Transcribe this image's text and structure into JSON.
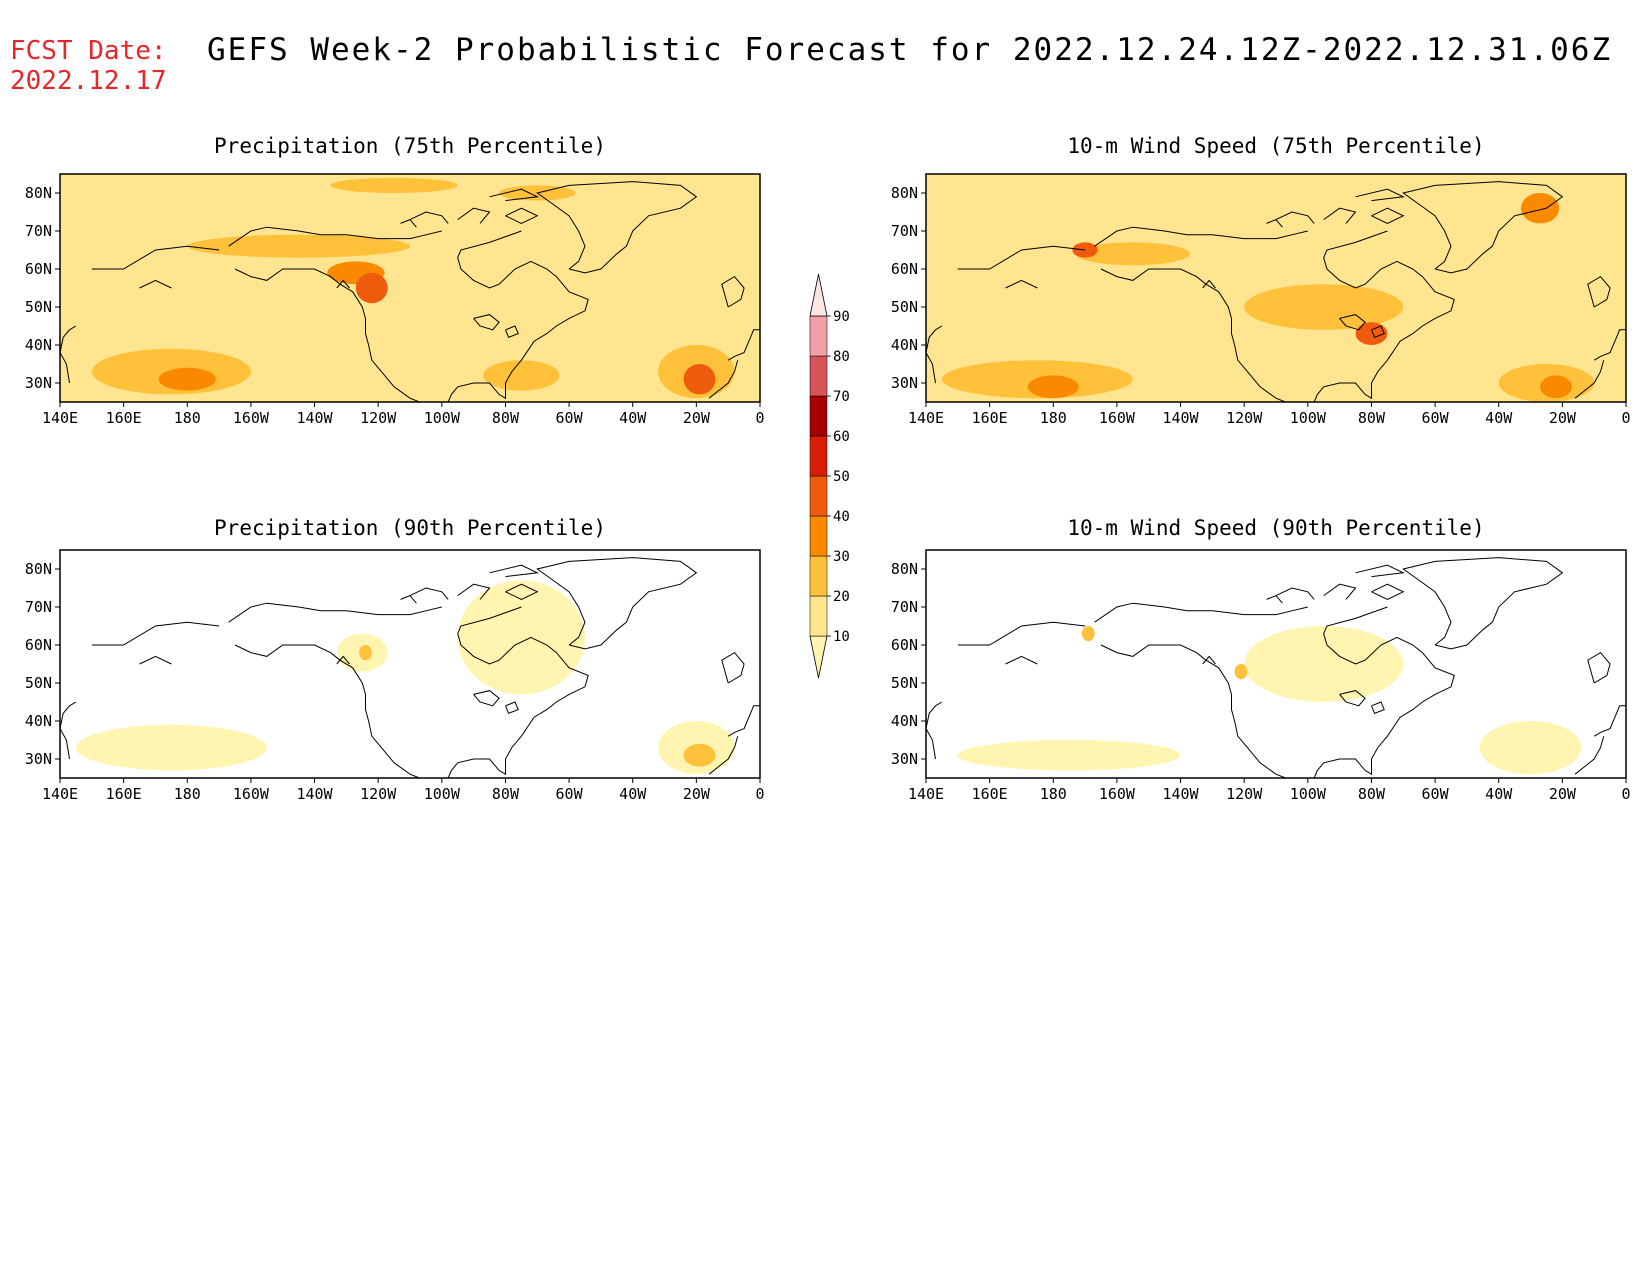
{
  "header": {
    "fcst_label": "FCST Date:",
    "fcst_date": "2022.12.17",
    "title": "GEFS Week-2 Probabilistic Forecast for 2022.12.24.12Z-2022.12.31.06Z"
  },
  "axes": {
    "lon_ticks": [
      "140E",
      "160E",
      "180",
      "160W",
      "140W",
      "120W",
      "100W",
      "80W",
      "60W",
      "40W",
      "20W",
      "0"
    ],
    "lat_ticks": [
      "80N",
      "70N",
      "60N",
      "50N",
      "40N",
      "30N"
    ],
    "lon_range_deg_east": [
      140,
      360
    ],
    "lat_range": [
      25,
      85
    ]
  },
  "colorbar": {
    "levels": [
      "10",
      "20",
      "30",
      "40",
      "50",
      "60",
      "70",
      "80",
      "90"
    ],
    "colors": [
      "#fff5b0",
      "#ffe58f",
      "#ffc03a",
      "#f98a00",
      "#ef5b0d",
      "#d81e05",
      "#a60000",
      "#d8545b",
      "#f2a0a6",
      "#fde4e5"
    ]
  },
  "panels": [
    {
      "id": "precip-75",
      "title": "Precipitation (75th Percentile)",
      "blobs": [
        {
          "lon": 175,
          "lat": 33,
          "rx": 25,
          "ry": 6,
          "level": 3
        },
        {
          "lon": 180,
          "lat": 31,
          "rx": 9,
          "ry": 3,
          "level": 4
        },
        {
          "lon": 215,
          "lat": 66,
          "rx": 35,
          "ry": 3,
          "level": 3
        },
        {
          "lon": 233,
          "lat": 59,
          "rx": 9,
          "ry": 3,
          "level": 4
        },
        {
          "lon": 238,
          "lat": 55,
          "rx": 5,
          "ry": 4,
          "level": 5
        },
        {
          "lon": 340,
          "lat": 33,
          "rx": 12,
          "ry": 7,
          "level": 3
        },
        {
          "lon": 341,
          "lat": 31,
          "rx": 5,
          "ry": 4,
          "level": 5
        },
        {
          "lon": 285,
          "lat": 32,
          "rx": 12,
          "ry": 4,
          "level": 3
        },
        {
          "lon": 245,
          "lat": 82,
          "rx": 20,
          "ry": 2,
          "level": 3
        },
        {
          "lon": 290,
          "lat": 80,
          "rx": 12,
          "ry": 2,
          "level": 3
        }
      ],
      "base_level": 2
    },
    {
      "id": "wind-75",
      "title": "10-m Wind Speed (75th Percentile)",
      "blobs": [
        {
          "lon": 175,
          "lat": 31,
          "rx": 30,
          "ry": 5,
          "level": 3
        },
        {
          "lon": 180,
          "lat": 29,
          "rx": 8,
          "ry": 3,
          "level": 4
        },
        {
          "lon": 205,
          "lat": 64,
          "rx": 18,
          "ry": 3,
          "level": 3
        },
        {
          "lon": 190,
          "lat": 65,
          "rx": 4,
          "ry": 2,
          "level": 5
        },
        {
          "lon": 265,
          "lat": 50,
          "rx": 25,
          "ry": 6,
          "level": 3
        },
        {
          "lon": 280,
          "lat": 43,
          "rx": 5,
          "ry": 3,
          "level": 5
        },
        {
          "lon": 335,
          "lat": 30,
          "rx": 15,
          "ry": 5,
          "level": 3
        },
        {
          "lon": 338,
          "lat": 29,
          "rx": 5,
          "ry": 3,
          "level": 4
        },
        {
          "lon": 333,
          "lat": 76,
          "rx": 6,
          "ry": 4,
          "level": 4
        }
      ],
      "base_level": 2
    },
    {
      "id": "precip-90",
      "title": "Precipitation (90th Percentile)",
      "blobs": [
        {
          "lon": 175,
          "lat": 33,
          "rx": 30,
          "ry": 6,
          "level": 1
        },
        {
          "lon": 235,
          "lat": 58,
          "rx": 8,
          "ry": 5,
          "level": 1
        },
        {
          "lon": 236,
          "lat": 58,
          "rx": 2,
          "ry": 2,
          "level": 3
        },
        {
          "lon": 340,
          "lat": 33,
          "rx": 12,
          "ry": 7,
          "level": 1
        },
        {
          "lon": 341,
          "lat": 31,
          "rx": 5,
          "ry": 3,
          "level": 3
        },
        {
          "lon": 285,
          "lat": 62,
          "rx": 20,
          "ry": 15,
          "level": 1
        }
      ],
      "base_level": 0
    },
    {
      "id": "wind-90",
      "title": "10-m Wind Speed (90th Percentile)",
      "blobs": [
        {
          "lon": 185,
          "lat": 31,
          "rx": 35,
          "ry": 4,
          "level": 1
        },
        {
          "lon": 265,
          "lat": 55,
          "rx": 25,
          "ry": 10,
          "level": 1
        },
        {
          "lon": 330,
          "lat": 33,
          "rx": 16,
          "ry": 7,
          "level": 1
        },
        {
          "lon": 191,
          "lat": 63,
          "rx": 2,
          "ry": 2,
          "level": 3
        },
        {
          "lon": 239,
          "lat": 53,
          "rx": 2,
          "ry": 2,
          "level": 3
        }
      ],
      "base_level": 0
    }
  ]
}
